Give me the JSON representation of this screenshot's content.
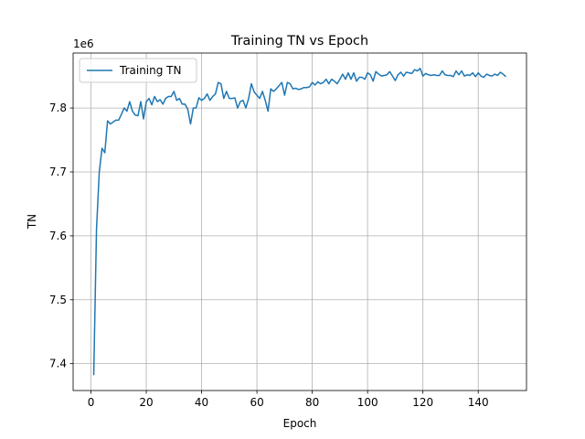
{
  "chart_data": {
    "type": "line",
    "title": "Training TN vs Epoch",
    "x_label": "Epoch",
    "y_label": "TN",
    "y_offset_label": "1e6",
    "x": [
      1,
      2,
      3,
      4,
      5,
      6,
      7,
      8,
      9,
      10,
      11,
      12,
      13,
      14,
      15,
      16,
      17,
      18,
      19,
      20,
      21,
      22,
      23,
      24,
      25,
      26,
      27,
      28,
      29,
      30,
      31,
      32,
      33,
      34,
      35,
      36,
      37,
      38,
      39,
      40,
      41,
      42,
      43,
      44,
      45,
      46,
      47,
      48,
      49,
      50,
      51,
      52,
      53,
      54,
      55,
      56,
      57,
      58,
      59,
      60,
      61,
      62,
      63,
      64,
      65,
      66,
      67,
      68,
      69,
      70,
      71,
      72,
      73,
      74,
      75,
      76,
      77,
      78,
      79,
      80,
      81,
      82,
      83,
      84,
      85,
      86,
      87,
      88,
      89,
      90,
      91,
      92,
      93,
      94,
      95,
      96,
      97,
      98,
      99,
      100,
      101,
      102,
      103,
      104,
      105,
      106,
      107,
      108,
      109,
      110,
      111,
      112,
      113,
      114,
      115,
      116,
      117,
      118,
      119,
      120,
      121,
      122,
      123,
      124,
      125,
      126,
      127,
      128,
      129,
      130,
      131,
      132,
      133,
      134,
      135,
      136,
      137,
      138,
      139,
      140,
      141,
      142,
      143,
      144,
      145,
      146,
      147,
      148,
      149,
      150
    ],
    "series": [
      {
        "name": "Training TN",
        "color": "#1f77b4",
        "values": [
          7.382,
          7.61,
          7.7,
          7.737,
          7.73,
          7.78,
          7.775,
          7.778,
          7.781,
          7.781,
          7.79,
          7.8,
          7.795,
          7.81,
          7.795,
          7.789,
          7.788,
          7.81,
          7.783,
          7.81,
          7.815,
          7.805,
          7.818,
          7.81,
          7.813,
          7.806,
          7.815,
          7.818,
          7.818,
          7.826,
          7.812,
          7.815,
          7.806,
          7.806,
          7.798,
          7.775,
          7.8,
          7.8,
          7.816,
          7.812,
          7.815,
          7.822,
          7.812,
          7.818,
          7.822,
          7.84,
          7.838,
          7.815,
          7.826,
          7.815,
          7.815,
          7.816,
          7.8,
          7.81,
          7.812,
          7.8,
          7.815,
          7.838,
          7.825,
          7.82,
          7.815,
          7.826,
          7.812,
          7.795,
          7.83,
          7.826,
          7.83,
          7.835,
          7.84,
          7.82,
          7.84,
          7.838,
          7.83,
          7.831,
          7.829,
          7.83,
          7.832,
          7.832,
          7.833,
          7.84,
          7.836,
          7.841,
          7.838,
          7.84,
          7.845,
          7.838,
          7.845,
          7.842,
          7.838,
          7.845,
          7.853,
          7.845,
          7.855,
          7.845,
          7.855,
          7.842,
          7.848,
          7.848,
          7.845,
          7.855,
          7.852,
          7.842,
          7.857,
          7.853,
          7.85,
          7.851,
          7.852,
          7.857,
          7.85,
          7.843,
          7.852,
          7.856,
          7.85,
          7.856,
          7.855,
          7.854,
          7.86,
          7.858,
          7.862,
          7.85,
          7.854,
          7.852,
          7.851,
          7.852,
          7.851,
          7.851,
          7.858,
          7.852,
          7.851,
          7.851,
          7.849,
          7.858,
          7.852,
          7.858,
          7.85,
          7.852,
          7.851,
          7.855,
          7.849,
          7.855,
          7.85,
          7.848,
          7.853,
          7.851,
          7.85,
          7.853,
          7.851,
          7.856,
          7.853,
          7.849
        ]
      }
    ],
    "xlim": [
      -6.45,
      157.45
    ],
    "ylim": [
      7.358,
      7.886
    ],
    "xticks": [
      0,
      20,
      40,
      60,
      80,
      100,
      120,
      140
    ],
    "yticks": [
      7.4,
      7.5,
      7.6,
      7.7,
      7.8
    ],
    "grid": true,
    "legend": "upper-left"
  }
}
